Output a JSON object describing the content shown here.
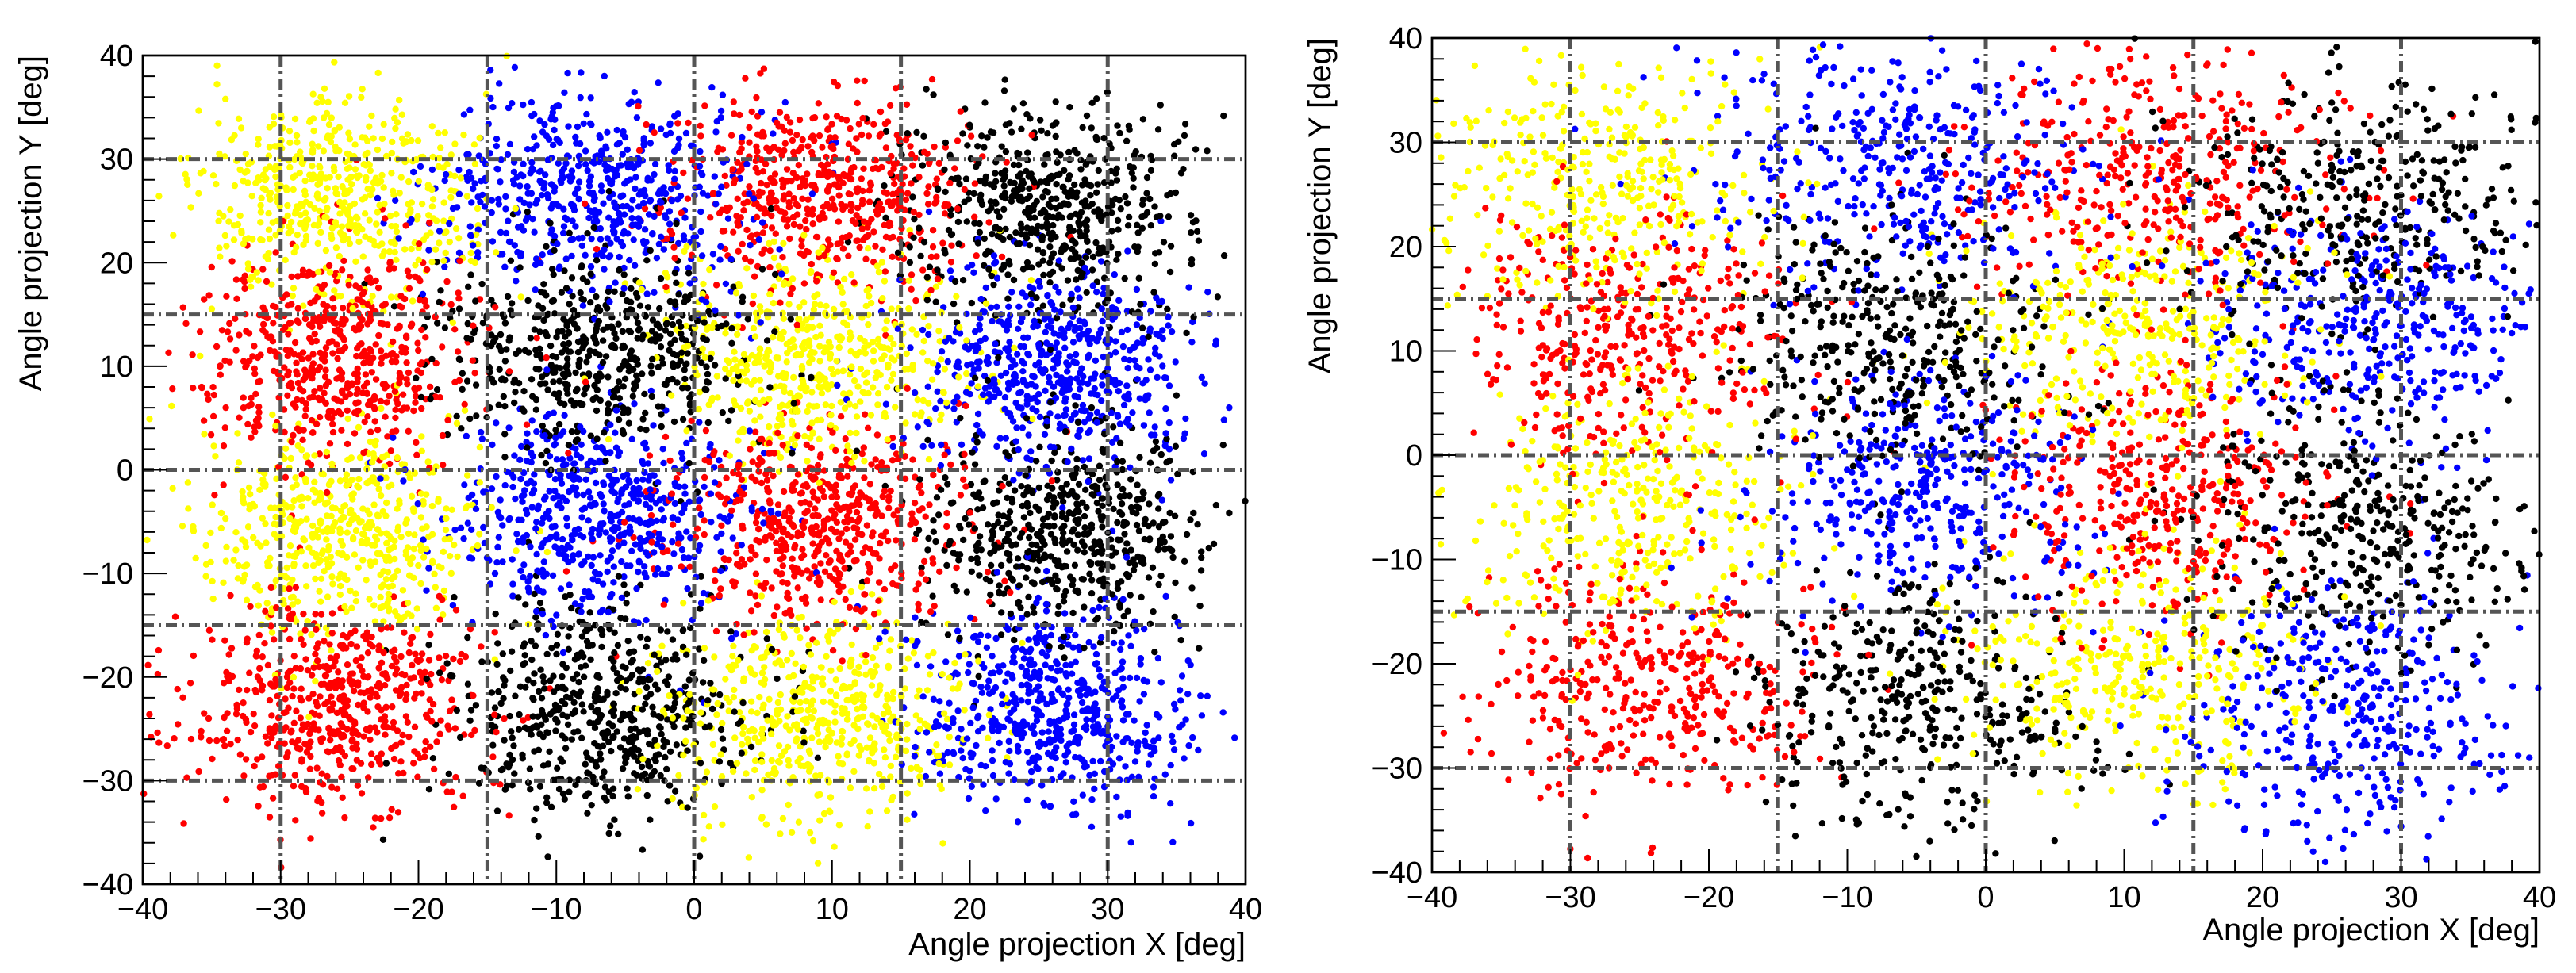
{
  "chart_data": [
    {
      "type": "scatter",
      "title": "",
      "xlabel": "Angle projection X [deg]",
      "ylabel": "Angle projection Y [deg]",
      "xlim": [
        -40,
        40
      ],
      "ylim": [
        -40,
        40
      ],
      "x_ticks": [
        -40,
        -30,
        -20,
        -10,
        0,
        10,
        20,
        30,
        40
      ],
      "y_ticks": [
        -40,
        -30,
        -20,
        -10,
        0,
        10,
        20,
        30,
        40
      ],
      "x_tick_labels": [
        "−40",
        "−30",
        "−20",
        "−10",
        "0",
        "10",
        "20",
        "30",
        "40"
      ],
      "y_tick_labels": [
        "−40",
        "−30",
        "−20",
        "−10",
        "0",
        "10",
        "20",
        "30",
        "40"
      ],
      "reference_lines_x": [
        -30,
        -15,
        0,
        15,
        30
      ],
      "reference_lines_y": [
        -30,
        -15,
        0,
        15,
        30
      ],
      "grid": false,
      "legend": "none",
      "colors": {
        "red": "#ff0000",
        "blue": "#0000ff",
        "yellow": "#ffff00",
        "black": "#000000"
      },
      "clusters": [
        {
          "color": "yellow",
          "cx": -26,
          "cy": 26,
          "sx": 5,
          "sy": 5,
          "n": 520
        },
        {
          "color": "blue",
          "cx": -7,
          "cy": 27,
          "sx": 5.5,
          "sy": 5,
          "n": 560
        },
        {
          "color": "red",
          "cx": 9,
          "cy": 27,
          "sx": 5.5,
          "sy": 5,
          "n": 560
        },
        {
          "color": "black",
          "cx": 26,
          "cy": 25,
          "sx": 5,
          "sy": 5,
          "n": 560
        },
        {
          "color": "red",
          "cx": -26,
          "cy": 11,
          "sx": 5,
          "sy": 5,
          "n": 560
        },
        {
          "color": "black",
          "cx": -7,
          "cy": 11,
          "sx": 5.5,
          "sy": 5,
          "n": 560
        },
        {
          "color": "yellow",
          "cx": 9,
          "cy": 11,
          "sx": 5.5,
          "sy": 5,
          "n": 520
        },
        {
          "color": "blue",
          "cx": 26,
          "cy": 10,
          "sx": 5,
          "sy": 5,
          "n": 560
        },
        {
          "color": "yellow",
          "cx": -26,
          "cy": -6,
          "sx": 5,
          "sy": 5,
          "n": 520
        },
        {
          "color": "blue",
          "cx": -7,
          "cy": -4,
          "sx": 5.5,
          "sy": 5,
          "n": 560
        },
        {
          "color": "red",
          "cx": 9,
          "cy": -5,
          "sx": 5.5,
          "sy": 5,
          "n": 560
        },
        {
          "color": "black",
          "cx": 26,
          "cy": -6,
          "sx": 5,
          "sy": 5,
          "n": 560
        },
        {
          "color": "red",
          "cx": -26,
          "cy": -23,
          "sx": 5,
          "sy": 5,
          "n": 560
        },
        {
          "color": "black",
          "cx": -7,
          "cy": -23,
          "sx": 5.5,
          "sy": 5,
          "n": 560
        },
        {
          "color": "yellow",
          "cx": 9,
          "cy": -24,
          "sx": 5.5,
          "sy": 5,
          "n": 520
        },
        {
          "color": "blue",
          "cx": 26,
          "cy": -23,
          "sx": 5,
          "sy": 5,
          "n": 560
        }
      ]
    },
    {
      "type": "scatter",
      "title": "",
      "xlabel": "Angle projection X [deg]",
      "ylabel": "Angle projection Y [deg]",
      "xlim": [
        -40,
        40
      ],
      "ylim": [
        -40,
        40
      ],
      "x_ticks": [
        -40,
        -30,
        -20,
        -10,
        0,
        10,
        20,
        30,
        40
      ],
      "y_ticks": [
        -40,
        -30,
        -20,
        -10,
        0,
        10,
        20,
        30,
        40
      ],
      "x_tick_labels": [
        "−40",
        "−30",
        "−20",
        "−10",
        "0",
        "10",
        "20",
        "30",
        "40"
      ],
      "y_tick_labels": [
        "−40",
        "−30",
        "−20",
        "−10",
        "0",
        "10",
        "20",
        "30",
        "40"
      ],
      "reference_lines_x": [
        -30,
        -15,
        0,
        15,
        30
      ],
      "reference_lines_y": [
        -30,
        -15,
        0,
        15,
        30
      ],
      "grid": false,
      "legend": "none",
      "colors": {
        "red": "#ff0000",
        "blue": "#0000ff",
        "yellow": "#ffff00",
        "black": "#000000"
      },
      "clusters": [
        {
          "color": "yellow",
          "cx": -28,
          "cy": 26,
          "sx": 6,
          "sy": 6,
          "n": 360
        },
        {
          "color": "blue",
          "cx": -6,
          "cy": 28,
          "sx": 7,
          "sy": 6,
          "n": 380
        },
        {
          "color": "red",
          "cx": 12,
          "cy": 27,
          "sx": 7,
          "sy": 6,
          "n": 380
        },
        {
          "color": "black",
          "cx": 27,
          "cy": 24,
          "sx": 6,
          "sy": 6,
          "n": 360
        },
        {
          "color": "red",
          "cx": -26,
          "cy": 12,
          "sx": 6,
          "sy": 6,
          "n": 380
        },
        {
          "color": "black",
          "cx": -7,
          "cy": 11,
          "sx": 6,
          "sy": 6,
          "n": 380
        },
        {
          "color": "yellow",
          "cx": 11,
          "cy": 12,
          "sx": 6,
          "sy": 6,
          "n": 360
        },
        {
          "color": "blue",
          "cx": 28,
          "cy": 12,
          "sx": 6,
          "sy": 6,
          "n": 380
        },
        {
          "color": "yellow",
          "cx": -26,
          "cy": -5,
          "sx": 6,
          "sy": 6,
          "n": 360
        },
        {
          "color": "blue",
          "cx": -4,
          "cy": -3,
          "sx": 6,
          "sy": 6,
          "n": 380
        },
        {
          "color": "red",
          "cx": 13,
          "cy": -4,
          "sx": 6,
          "sy": 6,
          "n": 380
        },
        {
          "color": "black",
          "cx": 28,
          "cy": -7,
          "sx": 6,
          "sy": 6,
          "n": 380
        },
        {
          "color": "red",
          "cx": -24,
          "cy": -22,
          "sx": 6,
          "sy": 6,
          "n": 380
        },
        {
          "color": "black",
          "cx": -5,
          "cy": -24,
          "sx": 6,
          "sy": 6,
          "n": 380
        },
        {
          "color": "yellow",
          "cx": 11,
          "cy": -21,
          "sx": 6,
          "sy": 6,
          "n": 360
        },
        {
          "color": "blue",
          "cx": 26,
          "cy": -25,
          "sx": 6,
          "sy": 6,
          "n": 380
        }
      ]
    }
  ]
}
